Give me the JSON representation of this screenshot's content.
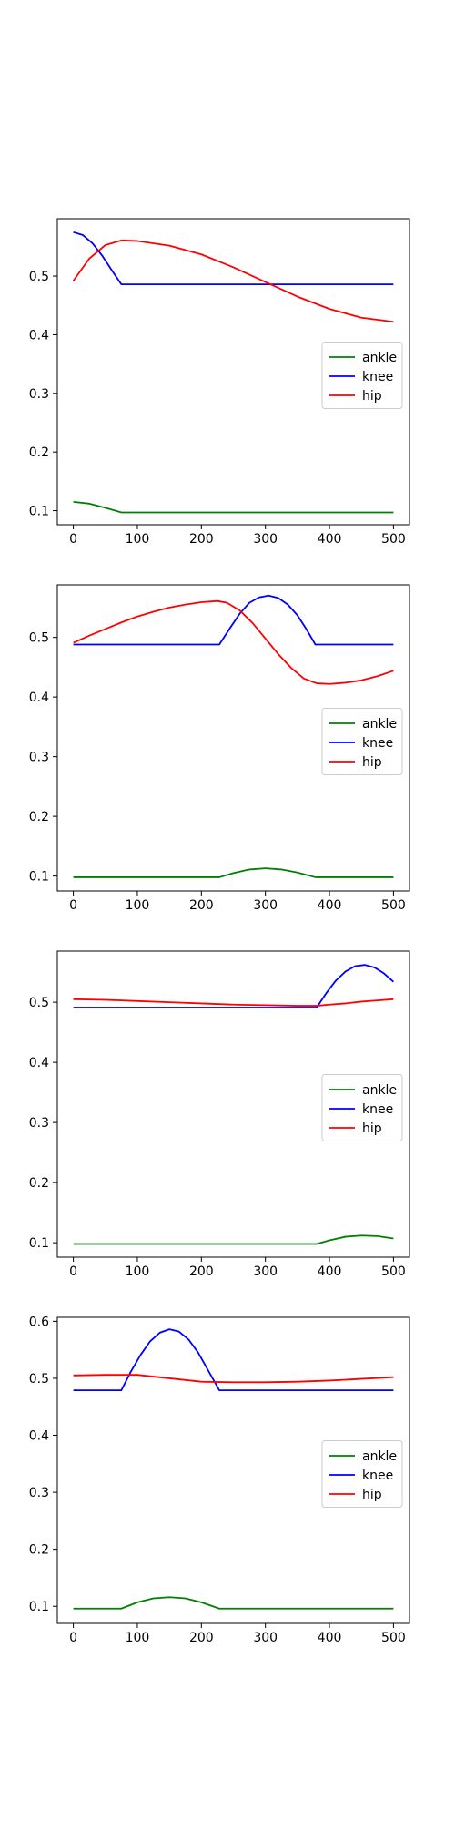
{
  "chart_data": [
    {
      "type": "line",
      "title": "",
      "xlabel": "",
      "ylabel": "",
      "xlim": [
        -25,
        525
      ],
      "ylim": [
        0.076,
        0.598
      ],
      "xticks": [
        0,
        100,
        200,
        300,
        400,
        500
      ],
      "yticks": [
        0.1,
        0.2,
        0.3,
        0.4,
        0.5
      ],
      "legend": "center-right",
      "series": [
        {
          "name": "ankle",
          "color": "#008000",
          "x": [
            0,
            25,
            50,
            75,
            500
          ],
          "y": [
            0.115,
            0.112,
            0.105,
            0.097,
            0.097
          ]
        },
        {
          "name": "knee",
          "color": "#0000ff",
          "x": [
            0,
            15,
            30,
            45,
            60,
            75,
            500
          ],
          "y": [
            0.575,
            0.57,
            0.556,
            0.535,
            0.51,
            0.486,
            0.486
          ]
        },
        {
          "name": "hip",
          "color": "#ff0000",
          "x": [
            0,
            25,
            50,
            75,
            100,
            150,
            200,
            250,
            300,
            350,
            400,
            450,
            500
          ],
          "y": [
            0.492,
            0.53,
            0.553,
            0.561,
            0.56,
            0.552,
            0.537,
            0.515,
            0.49,
            0.465,
            0.444,
            0.429,
            0.422
          ]
        }
      ]
    },
    {
      "type": "line",
      "title": "",
      "xlabel": "",
      "ylabel": "",
      "xlim": [
        -25,
        525
      ],
      "ylim": [
        0.075,
        0.588
      ],
      "xticks": [
        0,
        100,
        200,
        300,
        400,
        500
      ],
      "yticks": [
        0.1,
        0.2,
        0.3,
        0.4,
        0.5
      ],
      "legend": "center-right",
      "series": [
        {
          "name": "ankle",
          "color": "#008000",
          "x": [
            0,
            228,
            250,
            275,
            300,
            325,
            350,
            378,
            500
          ],
          "y": [
            0.098,
            0.098,
            0.105,
            0.111,
            0.113,
            0.111,
            0.106,
            0.098,
            0.098
          ]
        },
        {
          "name": "knee",
          "color": "#0000ff",
          "x": [
            0,
            228,
            245,
            260,
            275,
            290,
            305,
            320,
            335,
            350,
            365,
            378,
            500
          ],
          "y": [
            0.488,
            0.488,
            0.516,
            0.54,
            0.558,
            0.567,
            0.57,
            0.566,
            0.555,
            0.537,
            0.512,
            0.488,
            0.488
          ]
        },
        {
          "name": "hip",
          "color": "#ff0000",
          "x": [
            0,
            25,
            50,
            75,
            100,
            125,
            150,
            175,
            200,
            225,
            240,
            260,
            280,
            300,
            320,
            340,
            360,
            380,
            400,
            425,
            450,
            475,
            500
          ],
          "y": [
            0.491,
            0.503,
            0.514,
            0.525,
            0.535,
            0.543,
            0.55,
            0.555,
            0.559,
            0.561,
            0.558,
            0.545,
            0.524,
            0.498,
            0.472,
            0.449,
            0.431,
            0.423,
            0.422,
            0.424,
            0.428,
            0.435,
            0.444
          ]
        }
      ]
    },
    {
      "type": "line",
      "title": "",
      "xlabel": "",
      "ylabel": "",
      "xlim": [
        -25,
        525
      ],
      "ylim": [
        0.076,
        0.585
      ],
      "xticks": [
        0,
        100,
        200,
        300,
        400,
        500
      ],
      "yticks": [
        0.1,
        0.2,
        0.3,
        0.4,
        0.5
      ],
      "legend": "center-right",
      "series": [
        {
          "name": "ankle",
          "color": "#008000",
          "x": [
            0,
            380,
            400,
            425,
            450,
            475,
            500
          ],
          "y": [
            0.098,
            0.098,
            0.104,
            0.11,
            0.112,
            0.111,
            0.107
          ]
        },
        {
          "name": "knee",
          "color": "#0000ff",
          "x": [
            0,
            380,
            395,
            410,
            425,
            440,
            455,
            470,
            485,
            500
          ],
          "y": [
            0.491,
            0.491,
            0.515,
            0.536,
            0.551,
            0.56,
            0.562,
            0.558,
            0.548,
            0.534
          ]
        },
        {
          "name": "hip",
          "color": "#ff0000",
          "x": [
            0,
            50,
            100,
            150,
            200,
            250,
            300,
            350,
            380,
            400,
            425,
            450,
            475,
            500
          ],
          "y": [
            0.505,
            0.504,
            0.502,
            0.5,
            0.498,
            0.496,
            0.495,
            0.494,
            0.494,
            0.496,
            0.498,
            0.501,
            0.503,
            0.505
          ]
        }
      ]
    },
    {
      "type": "line",
      "title": "",
      "xlabel": "",
      "ylabel": "",
      "xlim": [
        -25,
        525
      ],
      "ylim": [
        0.07,
        0.607
      ],
      "xticks": [
        0,
        100,
        200,
        300,
        400,
        500
      ],
      "yticks": [
        0.1,
        0.2,
        0.3,
        0.4,
        0.5,
        0.6
      ],
      "legend": "center-right",
      "series": [
        {
          "name": "ankle",
          "color": "#008000",
          "x": [
            0,
            75,
            100,
            125,
            150,
            175,
            200,
            228,
            500
          ],
          "y": [
            0.096,
            0.096,
            0.107,
            0.114,
            0.116,
            0.114,
            0.107,
            0.096,
            0.096
          ]
        },
        {
          "name": "knee",
          "color": "#0000ff",
          "x": [
            0,
            75,
            90,
            105,
            120,
            135,
            150,
            165,
            180,
            195,
            210,
            228,
            500
          ],
          "y": [
            0.479,
            0.479,
            0.512,
            0.541,
            0.565,
            0.58,
            0.586,
            0.582,
            0.568,
            0.545,
            0.515,
            0.479,
            0.479
          ]
        },
        {
          "name": "hip",
          "color": "#ff0000",
          "x": [
            0,
            50,
            100,
            150,
            200,
            250,
            300,
            350,
            400,
            450,
            500
          ],
          "y": [
            0.505,
            0.506,
            0.506,
            0.5,
            0.494,
            0.493,
            0.493,
            0.494,
            0.496,
            0.499,
            0.502
          ]
        }
      ]
    }
  ]
}
